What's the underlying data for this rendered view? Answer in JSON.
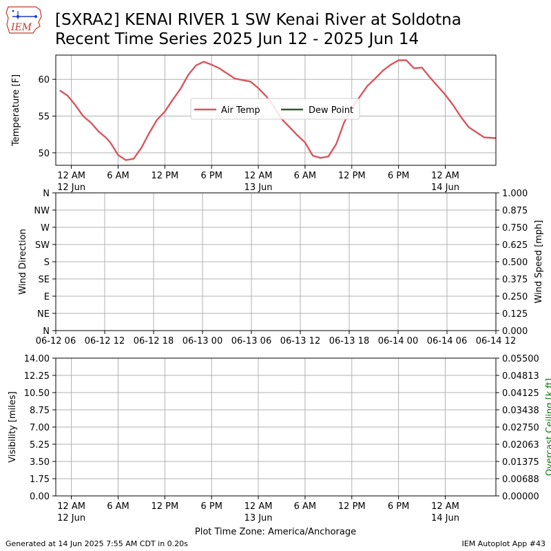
{
  "header": {
    "title_line1": "[SXRA2] KENAI RIVER 1 SW Kenai River at Soldotna",
    "title_line2": "Recent Time Series 2025 Jun 12 - 2025 Jun 14",
    "logo_text": "IEM"
  },
  "footer": {
    "generated": "Generated at 14 Jun 2025 7:55 AM CDT in 0.20s",
    "app": "IEM Autoplot App #43",
    "timezone_label": "Plot Time Zone: America/Anchorage"
  },
  "colors": {
    "air_temp": "#d9545d",
    "dew_point": "#2d5a2d",
    "grid": "#b0b0b0",
    "ceiling_label": "#008000"
  },
  "chart_data": [
    {
      "type": "line",
      "panel": "temperature",
      "ylabel": "Temperature [F]",
      "ylim": [
        48.3,
        63.3
      ],
      "yticks": [
        50,
        55,
        60
      ],
      "xlim_hours": [
        -2.0,
        54.5
      ],
      "xticks": [
        {
          "h": 0,
          "label": "12 AM",
          "sub": "12 Jun"
        },
        {
          "h": 6,
          "label": "6 AM",
          "sub": ""
        },
        {
          "h": 12,
          "label": "12 PM",
          "sub": ""
        },
        {
          "h": 18,
          "label": "6 PM",
          "sub": ""
        },
        {
          "h": 24,
          "label": "12 AM",
          "sub": "13 Jun"
        },
        {
          "h": 30,
          "label": "6 AM",
          "sub": ""
        },
        {
          "h": 36,
          "label": "12 PM",
          "sub": ""
        },
        {
          "h": 42,
          "label": "6 PM",
          "sub": ""
        },
        {
          "h": 48,
          "label": "12 AM",
          "sub": "14 Jun"
        }
      ],
      "grid": true,
      "legend": {
        "position": "center",
        "entries": [
          "Air Temp",
          "Dew Point"
        ]
      },
      "series": [
        {
          "name": "Air Temp",
          "x_hours": [
            -1.5,
            -0.5,
            0.5,
            1.5,
            2.5,
            3.5,
            4.5,
            5.0,
            6.0,
            7.0,
            8.0,
            9.0,
            10.0,
            11.0,
            12.0,
            13.0,
            14.0,
            15.0,
            16.0,
            17.0,
            18.0,
            19.0,
            20.0,
            21.0,
            22.0,
            23.0,
            24.0,
            25.0,
            26.0,
            27.0,
            28.0,
            29.0,
            30.0,
            31.0,
            32.0,
            33.0,
            34.0,
            35.0,
            36.0,
            37.0,
            38.0,
            39.0,
            40.0,
            41.0,
            42.0,
            43.0,
            44.0,
            45.0,
            46.0,
            47.0,
            48.0,
            49.0,
            50.0,
            51.0,
            52.0,
            53.0,
            54.5
          ],
          "values": [
            58.5,
            57.8,
            56.5,
            55.0,
            54.1,
            52.9,
            52.0,
            51.4,
            49.7,
            49.0,
            49.2,
            50.7,
            52.7,
            54.5,
            55.6,
            57.2,
            58.7,
            60.6,
            61.9,
            62.4,
            62.0,
            61.5,
            60.8,
            60.1,
            59.9,
            59.7,
            58.8,
            57.7,
            56.3,
            54.6,
            53.5,
            52.4,
            51.4,
            49.6,
            49.3,
            49.5,
            51.2,
            54.1,
            56.1,
            57.6,
            59.1,
            60.1,
            61.2,
            62.0,
            62.6,
            62.6,
            61.5,
            61.6,
            60.3,
            59.1,
            57.9,
            56.5,
            54.9,
            53.5,
            52.8,
            52.1,
            52.0
          ]
        },
        {
          "name": "Dew Point",
          "x_hours": [],
          "values": []
        }
      ]
    },
    {
      "type": "line",
      "panel": "wind",
      "ylabel": "Wind Direction",
      "ylabel_right": "Wind Speed [mph]",
      "yticks_left": [
        "N",
        "NE",
        "E",
        "SE",
        "S",
        "SW",
        "W",
        "NW",
        "N"
      ],
      "yticks_right": [
        "0.000",
        "0.125",
        "0.250",
        "0.375",
        "0.500",
        "0.625",
        "0.750",
        "0.875",
        "1.000"
      ],
      "ylim_right": [
        0,
        1
      ],
      "xticks": [
        "06-12 06",
        "06-12 12",
        "06-12 18",
        "06-13 00",
        "06-13 06",
        "06-13 12",
        "06-13 18",
        "06-14 00",
        "06-14 06",
        "06-14 12"
      ],
      "grid": true,
      "series": []
    },
    {
      "type": "line",
      "panel": "visibility",
      "ylabel": "Visibility [miles]",
      "ylabel_right": "Overcast Ceiling [k ft]",
      "ylim": [
        0,
        14
      ],
      "ylim_right": [
        0,
        0.055
      ],
      "yticks_left": [
        "0.00",
        "1.75",
        "3.50",
        "5.25",
        "7.00",
        "8.75",
        "10.50",
        "12.25",
        "14.00"
      ],
      "yticks_right": [
        "0.00000",
        "0.00688",
        "0.01375",
        "0.02063",
        "0.02750",
        "0.03438",
        "0.04125",
        "0.04813",
        "0.05500"
      ],
      "xlim_hours": [
        -2.0,
        54.5
      ],
      "xticks": [
        {
          "h": 0,
          "label": "12 AM",
          "sub": "12 Jun"
        },
        {
          "h": 6,
          "label": "6 AM",
          "sub": ""
        },
        {
          "h": 12,
          "label": "12 PM",
          "sub": ""
        },
        {
          "h": 18,
          "label": "6 PM",
          "sub": ""
        },
        {
          "h": 24,
          "label": "12 AM",
          "sub": "13 Jun"
        },
        {
          "h": 30,
          "label": "6 AM",
          "sub": ""
        },
        {
          "h": 36,
          "label": "12 PM",
          "sub": ""
        },
        {
          "h": 42,
          "label": "6 PM",
          "sub": ""
        },
        {
          "h": 48,
          "label": "12 AM",
          "sub": "14 Jun"
        }
      ],
      "grid": true,
      "series": []
    }
  ]
}
